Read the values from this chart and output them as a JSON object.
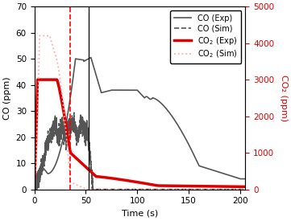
{
  "xlabel": "Time (s)",
  "ylabel_left": "CO (ppm)",
  "ylabel_right": "CO₂ (ppm)",
  "xlim": [
    0,
    205
  ],
  "ylim_left": [
    0,
    70
  ],
  "ylim_right": [
    0,
    5000
  ],
  "xticks": [
    0,
    50,
    100,
    150,
    200
  ],
  "yticks_left": [
    0,
    10,
    20,
    30,
    40,
    50,
    60,
    70
  ],
  "yticks_right": [
    0,
    1000,
    2000,
    3000,
    4000,
    5000
  ],
  "vline_red": 35,
  "vline_black": 53,
  "background_color": "#ffffff",
  "co_exp_color": "#555555",
  "co_sim_color": "#555555",
  "co2_exp_color": "#dd0000",
  "co2_sim_color": "#ffaaaa",
  "right_axis_color": "#dd0000"
}
